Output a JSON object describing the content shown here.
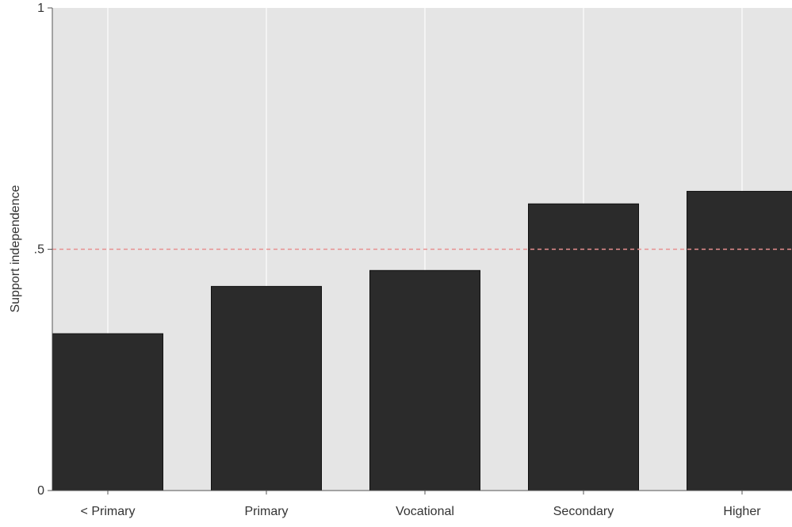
{
  "chart_data": {
    "type": "bar",
    "title": "",
    "xlabel": "",
    "ylabel": "Support independence",
    "categories": [
      "< Primary",
      "Primary",
      "Vocational",
      "Secondary",
      "Higher"
    ],
    "values": [
      0.325,
      0.423,
      0.456,
      0.594,
      0.62
    ],
    "ylim": [
      0,
      1
    ],
    "yticks": [
      {
        "value": 0,
        "label": "0"
      },
      {
        "value": 0.5,
        "label": ".5"
      },
      {
        "value": 1,
        "label": "1"
      }
    ],
    "reference_line": {
      "value": 0.5,
      "style": "dashed",
      "color": "#e88f8f"
    },
    "grid": {
      "vertical": true,
      "horizontal": false
    },
    "legend": "none",
    "colors": {
      "bar": "#2b2b2b",
      "bar_edge": "#111111",
      "panel_background": "#e5e5e5",
      "gridline": "#ffffff",
      "axis": "#555555"
    }
  }
}
